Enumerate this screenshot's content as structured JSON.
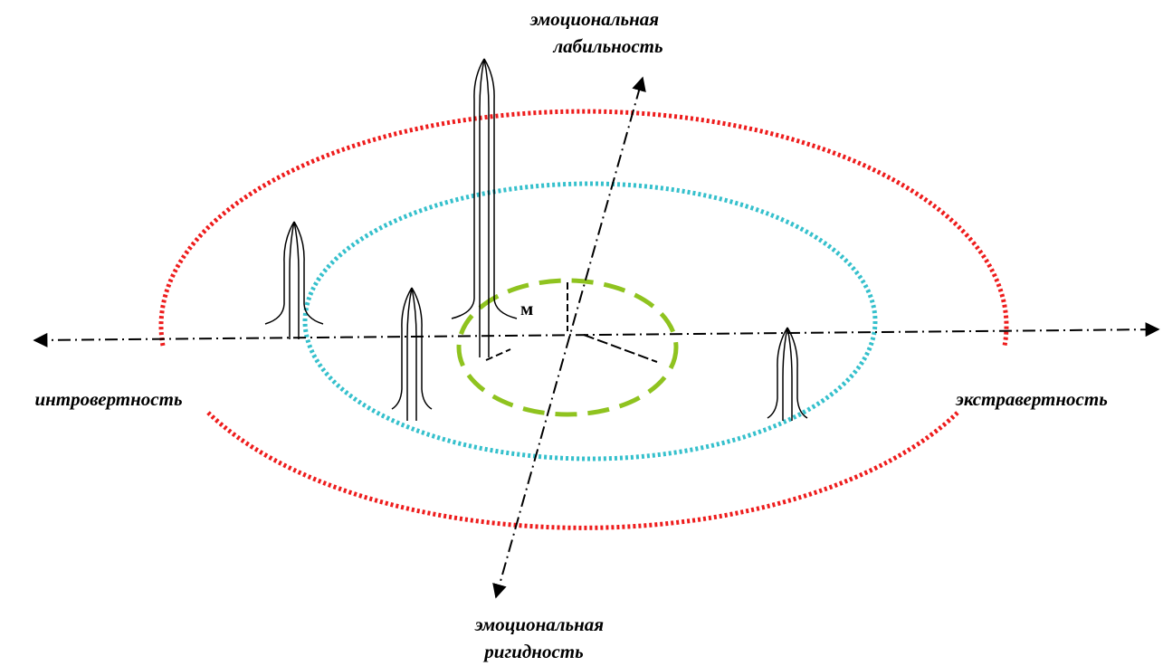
{
  "labels": {
    "top": [
      "эмоциональная",
      "лабильность"
    ],
    "bottom": [
      "эмоциональная",
      "ригидность"
    ],
    "left": "интровертность",
    "right": "экстравертность",
    "center": "м"
  }
}
